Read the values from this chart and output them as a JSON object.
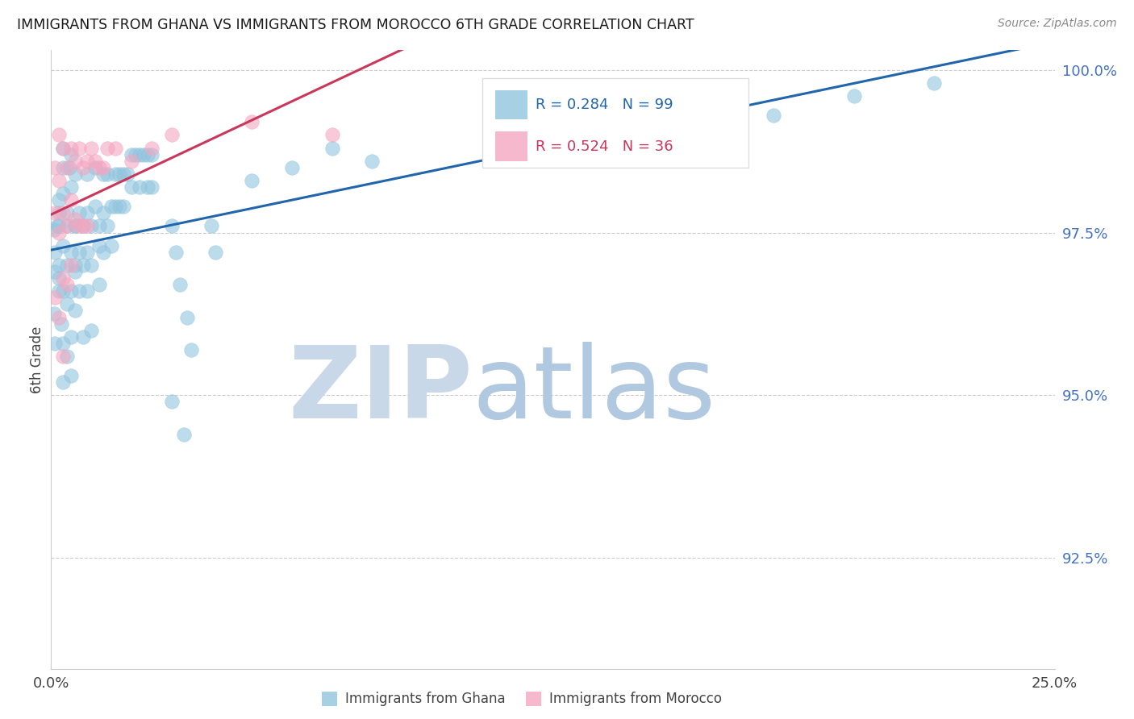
{
  "title": "IMMIGRANTS FROM GHANA VS IMMIGRANTS FROM MOROCCO 6TH GRADE CORRELATION CHART",
  "source": "Source: ZipAtlas.com",
  "xlabel": "",
  "ylabel": "6th Grade",
  "xlim": [
    0.0,
    0.25
  ],
  "ylim": [
    0.908,
    1.003
  ],
  "xticks": [
    0.0,
    0.05,
    0.1,
    0.15,
    0.2,
    0.25
  ],
  "xtick_labels": [
    "0.0%",
    "",
    "",
    "",
    "",
    "25.0%"
  ],
  "yticks": [
    0.925,
    0.95,
    0.975,
    1.0
  ],
  "ytick_labels": [
    "92.5%",
    "95.0%",
    "97.5%",
    "100.0%"
  ],
  "R_ghana": 0.284,
  "N_ghana": 99,
  "R_morocco": 0.524,
  "N_morocco": 36,
  "color_ghana": "#92c5de",
  "color_morocco": "#f4a6c0",
  "color_ghana_line": "#2166ac",
  "color_morocco_line": "#c9375a",
  "ghana_x": [
    0.0008,
    0.001,
    0.001,
    0.0015,
    0.002,
    0.0008,
    0.001,
    0.002,
    0.002,
    0.002,
    0.003,
    0.002,
    0.002,
    0.0025,
    0.003,
    0.003,
    0.003,
    0.003,
    0.003,
    0.003,
    0.004,
    0.004,
    0.004,
    0.004,
    0.0045,
    0.004,
    0.005,
    0.005,
    0.005,
    0.005,
    0.005,
    0.005,
    0.006,
    0.006,
    0.006,
    0.006,
    0.006,
    0.006,
    0.007,
    0.007,
    0.007,
    0.008,
    0.008,
    0.008,
    0.009,
    0.009,
    0.009,
    0.009,
    0.01,
    0.01,
    0.01,
    0.011,
    0.011,
    0.012,
    0.012,
    0.012,
    0.013,
    0.013,
    0.013,
    0.014,
    0.014,
    0.015,
    0.015,
    0.016,
    0.016,
    0.017,
    0.017,
    0.018,
    0.018,
    0.019,
    0.02,
    0.02,
    0.021,
    0.022,
    0.022,
    0.023,
    0.024,
    0.024,
    0.025,
    0.025,
    0.03,
    0.03,
    0.031,
    0.032,
    0.033,
    0.034,
    0.035,
    0.04,
    0.041,
    0.05,
    0.06,
    0.07,
    0.08,
    0.11,
    0.12,
    0.15,
    0.18,
    0.2,
    0.22
  ],
  "ghana_y": [
    0.9755,
    0.972,
    0.969,
    0.976,
    0.98,
    0.9625,
    0.958,
    0.978,
    0.97,
    0.966,
    0.985,
    0.976,
    0.968,
    0.961,
    0.988,
    0.981,
    0.973,
    0.966,
    0.958,
    0.952,
    0.976,
    0.97,
    0.964,
    0.956,
    0.985,
    0.978,
    0.972,
    0.966,
    0.959,
    0.953,
    0.987,
    0.982,
    0.976,
    0.969,
    0.963,
    0.976,
    0.97,
    0.984,
    0.978,
    0.972,
    0.966,
    0.959,
    0.976,
    0.97,
    0.984,
    0.978,
    0.972,
    0.966,
    0.96,
    0.976,
    0.97,
    0.985,
    0.979,
    0.973,
    0.967,
    0.976,
    0.984,
    0.978,
    0.972,
    0.976,
    0.984,
    0.979,
    0.973,
    0.984,
    0.979,
    0.984,
    0.979,
    0.984,
    0.979,
    0.984,
    0.987,
    0.982,
    0.987,
    0.987,
    0.982,
    0.987,
    0.987,
    0.982,
    0.987,
    0.982,
    0.976,
    0.949,
    0.972,
    0.967,
    0.944,
    0.962,
    0.957,
    0.976,
    0.972,
    0.983,
    0.985,
    0.988,
    0.986,
    0.99,
    0.99,
    0.992,
    0.993,
    0.996,
    0.998
  ],
  "morocco_x": [
    0.001,
    0.001,
    0.001,
    0.002,
    0.002,
    0.002,
    0.002,
    0.003,
    0.003,
    0.003,
    0.003,
    0.004,
    0.004,
    0.004,
    0.005,
    0.005,
    0.005,
    0.006,
    0.006,
    0.007,
    0.007,
    0.008,
    0.008,
    0.009,
    0.009,
    0.01,
    0.011,
    0.012,
    0.013,
    0.014,
    0.016,
    0.02,
    0.025,
    0.03,
    0.05,
    0.07
  ],
  "morocco_y": [
    0.985,
    0.978,
    0.965,
    0.99,
    0.983,
    0.975,
    0.962,
    0.988,
    0.978,
    0.968,
    0.956,
    0.985,
    0.976,
    0.967,
    0.988,
    0.98,
    0.97,
    0.986,
    0.977,
    0.988,
    0.976,
    0.985,
    0.976,
    0.986,
    0.976,
    0.988,
    0.986,
    0.985,
    0.985,
    0.988,
    0.988,
    0.986,
    0.988,
    0.99,
    0.992,
    0.99
  ],
  "watermark_zip": "ZIP",
  "watermark_atlas": "atlas",
  "legend_ghana_text": "Immigrants from Ghana",
  "legend_morocco_text": "Immigrants from Morocco",
  "title_color": "#1a1a1a",
  "axis_label_color": "#444444",
  "ytick_color": "#4472c4",
  "xtick_color": "#444444",
  "source_color": "#888888",
  "watermark_zip_color": "#c8d8e8",
  "watermark_atlas_color": "#b0c8e0",
  "grid_color": "#cccccc",
  "background_color": "#ffffff",
  "legend_box_color": "#eeeeee"
}
